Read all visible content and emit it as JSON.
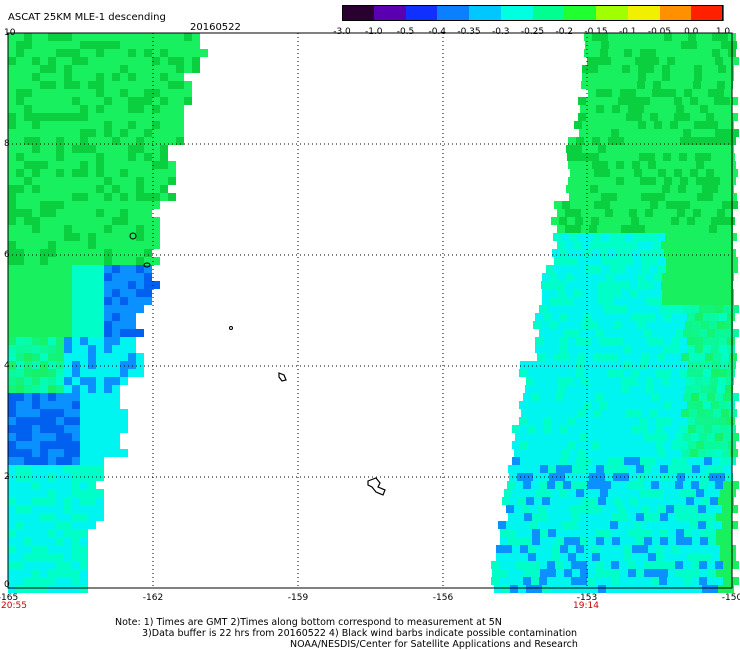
{
  "header": {
    "title": "ASCAT 25KM MLE-1 descending",
    "date": "20160522"
  },
  "colorbar": {
    "colors": [
      "#2a0030",
      "#5a00b0",
      "#1030ff",
      "#0a80ff",
      "#00c8ff",
      "#00ffe0",
      "#00ff90",
      "#20ff30",
      "#a0ff00",
      "#f0f000",
      "#ff9000",
      "#ff2000"
    ],
    "labels": [
      "-3.0",
      "-1.0",
      "-0.5",
      "-0.4",
      "-0.35",
      "-0.3",
      "-0.25",
      "-0.2",
      "-0.15",
      "-0.1",
      "-0.05",
      "0.0",
      "1.0"
    ]
  },
  "axes": {
    "y_labels": [
      "10",
      "8",
      "6",
      "4",
      "2",
      "0"
    ],
    "x_labels": [
      "-165",
      "-162",
      "-159",
      "-156",
      "-153",
      "-150"
    ],
    "x_sublabel_left": "20:55",
    "x_sublabel_right": "19:14"
  },
  "swaths": {
    "left_time": "20:55",
    "right_time": "19:14"
  },
  "notes": {
    "line1": "Note: 1) Times are GMT 2)Times along bottom correspond to measurement at 5N",
    "line2": "3)Data buffer is 22 hrs from 20160522 4) Black wind barbs indicate possible contamination",
    "line3": "NOAA/NESDIS/Center for Satellite Applications and Research"
  }
}
